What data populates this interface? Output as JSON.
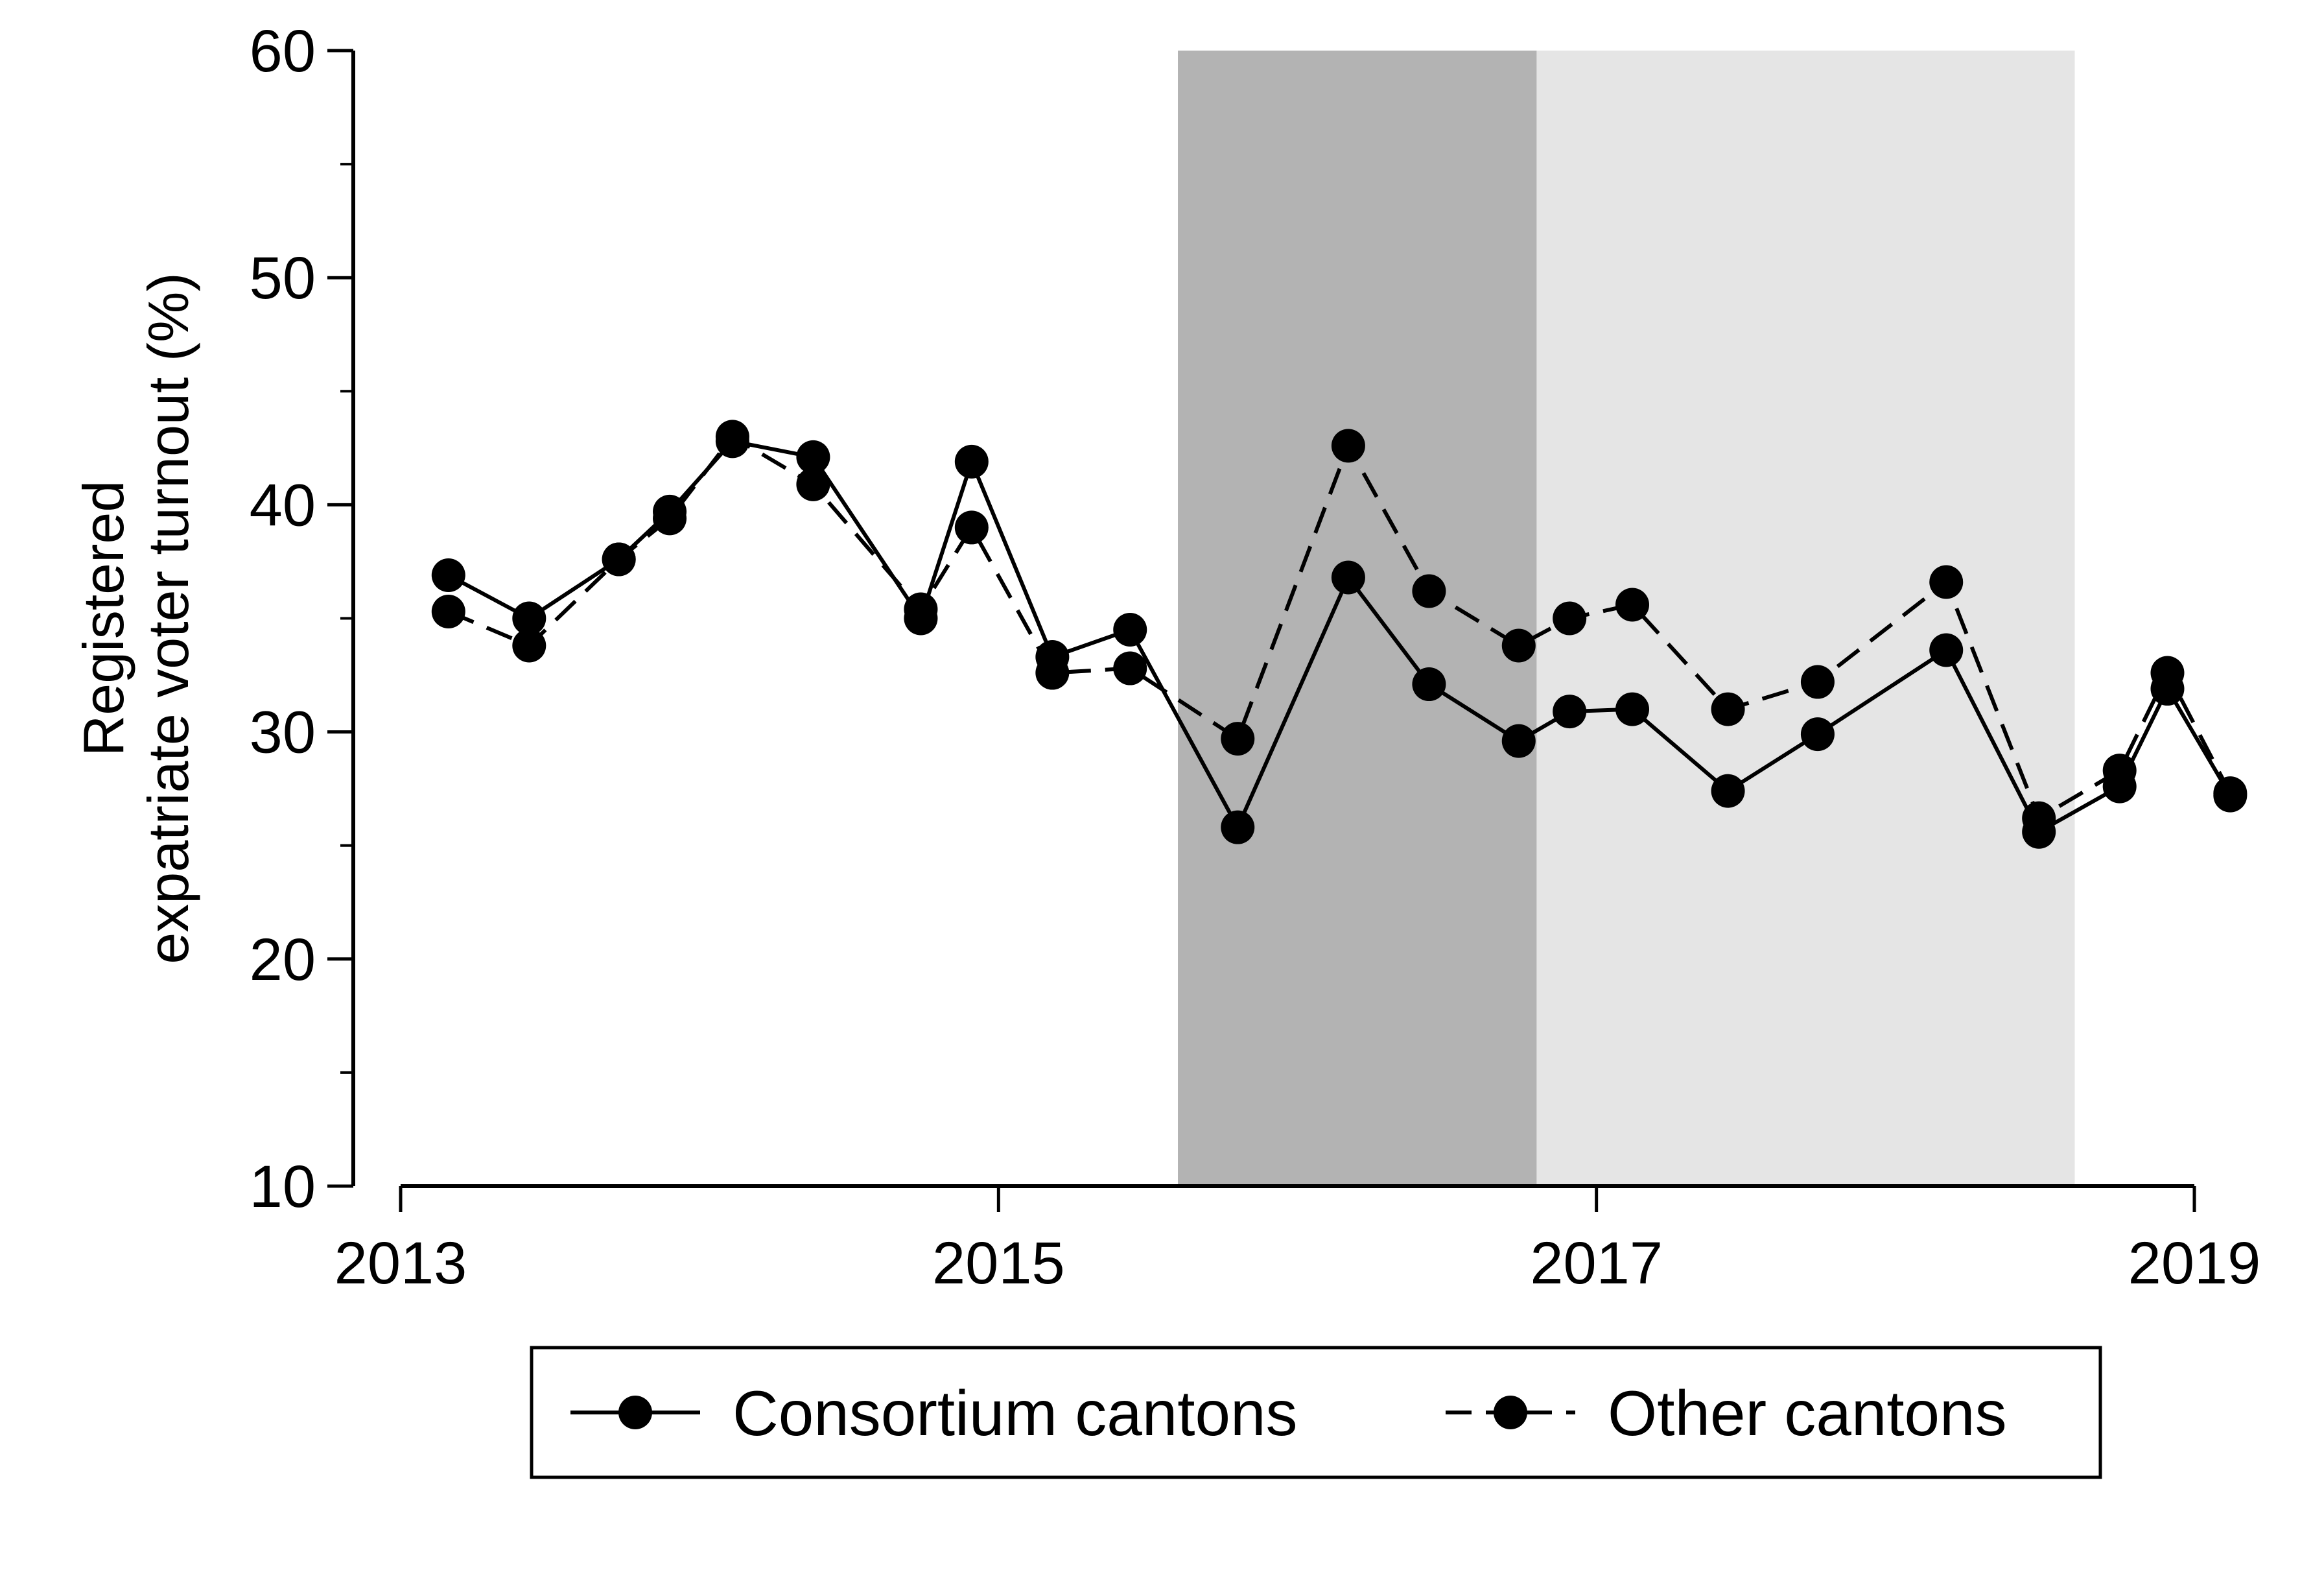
{
  "chart_data": {
    "type": "line",
    "title": "",
    "xlabel": "",
    "ylabel": [
      "Registered",
      "expatriate voter turnout (%)"
    ],
    "xlim": [
      2013,
      2019
    ],
    "ylim": [
      10,
      60
    ],
    "xticks": [
      "2013",
      "2015",
      "2017",
      "2019"
    ],
    "yticks": [
      "10",
      "20",
      "30",
      "40",
      "50",
      "60"
    ],
    "grid": false,
    "legend_position": "bottom",
    "shaded_periods": [
      {
        "start": 2015.6,
        "end": 2016.8,
        "color": "#b3b3b3"
      },
      {
        "start": 2016.8,
        "end": 2018.6,
        "color": "#e5e5e5"
      }
    ],
    "series": [
      {
        "name": "Consortium cantons",
        "line_style": "solid",
        "marker": "circle",
        "color": "#000000",
        "x": [
          2013.16,
          2013.43,
          2013.73,
          2013.9,
          2014.11,
          2014.38,
          2014.74,
          2014.91,
          2015.18,
          2015.44,
          2015.8,
          2016.17,
          2016.44,
          2016.74,
          2016.91,
          2017.12,
          2017.44,
          2017.74,
          2018.17,
          2018.48,
          2018.75,
          2018.91,
          2019.12
        ],
        "y": [
          36.9,
          35.0,
          37.6,
          39.7,
          42.8,
          42.1,
          35.0,
          41.9,
          33.3,
          34.5,
          25.8,
          36.8,
          32.1,
          29.6,
          30.9,
          31.0,
          27.4,
          29.9,
          33.6,
          25.6,
          27.6,
          31.9,
          27.2
        ]
      },
      {
        "name": "Other cantons",
        "line_style": "dashed",
        "marker": "circle",
        "color": "#000000",
        "x": [
          2013.16,
          2013.43,
          2013.73,
          2013.9,
          2014.11,
          2014.38,
          2014.74,
          2014.91,
          2015.18,
          2015.44,
          2015.8,
          2016.17,
          2016.44,
          2016.74,
          2016.91,
          2017.12,
          2017.44,
          2017.74,
          2018.17,
          2018.48,
          2018.75,
          2018.91,
          2019.12
        ],
        "y": [
          35.3,
          33.8,
          37.6,
          39.4,
          43.0,
          40.9,
          35.4,
          39.0,
          32.6,
          32.8,
          29.7,
          42.6,
          36.2,
          33.8,
          35.0,
          35.6,
          31.0,
          32.2,
          36.6,
          26.2,
          28.3,
          32.6,
          27.3
        ]
      }
    ]
  }
}
